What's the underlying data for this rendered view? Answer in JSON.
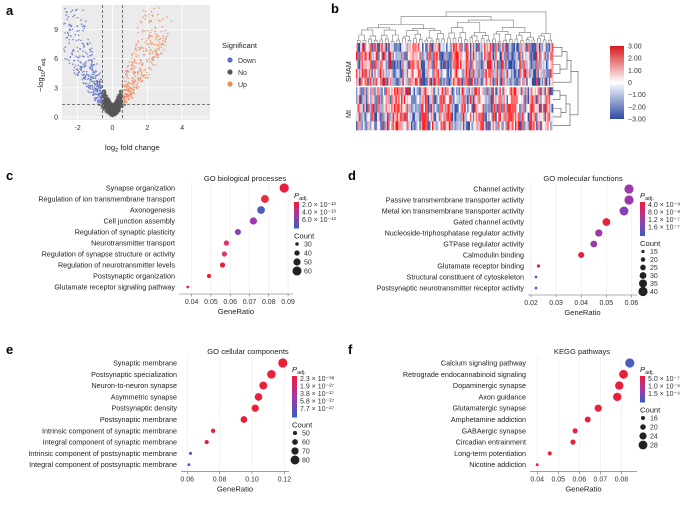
{
  "panels": {
    "a": {
      "letter": "a",
      "legend_title": "Significant",
      "legend_items": [
        {
          "label": "Down",
          "color": "#5a6dc4"
        },
        {
          "label": "No",
          "color": "#555555"
        },
        {
          "label": "Up",
          "color": "#f08a5d"
        }
      ],
      "xticks": [
        "-2",
        "0",
        "2",
        "4"
      ],
      "yticks": [
        "0",
        "3",
        "6",
        "9"
      ],
      "xlabel_main": "log",
      "xlabel_sub": "2",
      "xlabel_rest": " fold change",
      "ylabel_main": "−log",
      "ylabel_sub": "10",
      "ylabel_p": "P",
      "ylabel_padj": "adj."
    },
    "b": {
      "letter": "b",
      "row_labels": [
        "SHAM",
        "MI"
      ],
      "colorbar_labels": [
        "3.00",
        "2.00",
        "1.00",
        "0",
        "−1.00",
        "−2.00",
        "−3.00"
      ]
    }
  },
  "chart_data": [
    {
      "panel": "c",
      "type": "scatter",
      "title": "GO biological processes",
      "xlabel": "GeneRatio",
      "xticks": [
        "0.04",
        "0.05",
        "0.06",
        "0.07",
        "0.08",
        "0.09"
      ],
      "xlim": [
        0.035,
        0.091
      ],
      "categories": [
        "Synapse organization",
        "Regulation of ion transmembrane transport",
        "Axonogenesis",
        "Cell junction assembly",
        "Regulation of synaptic plasticity",
        "Neurotransmitter transport",
        "Regulation of synapse structure or activity",
        "Regulation of neurotransmitter levels",
        "Postsynaptic organization",
        "Glutamate receptor signaling pathway"
      ],
      "gene_ratio": [
        0.088,
        0.078,
        0.076,
        0.072,
        0.064,
        0.058,
        0.057,
        0.056,
        0.049,
        0.038
      ],
      "count": [
        61,
        54,
        53,
        50,
        44,
        40,
        39,
        39,
        34,
        26
      ],
      "padj_colors": [
        "#e8203a",
        "#e23040",
        "#4a5ec0",
        "#9a3aa8",
        "#8a40b0",
        "#e03468",
        "#d43a78",
        "#e8203a",
        "#e8203a",
        "#e8203a"
      ],
      "legend_color_title": "P",
      "legend_color_sub": "adj.",
      "legend_color_values": [
        "2.0 × 10⁻¹³",
        "4.0 × 10⁻¹³",
        "6.0 × 10⁻¹³"
      ],
      "legend_size_title": "Count",
      "legend_size_values": [
        "30",
        "40",
        "50",
        "60"
      ]
    },
    {
      "panel": "d",
      "type": "scatter",
      "title": "GO molecular functions",
      "xlabel": "GeneRatio",
      "xticks": [
        "0.02",
        "0.03",
        "0.04",
        "0.05",
        "0.06"
      ],
      "xlim": [
        0.02,
        0.061
      ],
      "categories": [
        "Channel activity",
        "Passive transmembrane transporter activity",
        "Metal ion transmembrane transporter activity",
        "Gated channel activity",
        "Nucleoside-triphosphatase regulator activity",
        "GTPase regulator activity",
        "Calmodulin binding",
        "Glutamate receptor binding",
        "Structural constituent of cytoskeleton",
        "Postsynaptic neurotransmitter receptor activity"
      ],
      "gene_ratio": [
        0.059,
        0.059,
        0.057,
        0.05,
        0.047,
        0.045,
        0.04,
        0.023,
        0.022,
        0.022
      ],
      "count": [
        40,
        40,
        39,
        34,
        32,
        30,
        27,
        15,
        13,
        13
      ],
      "padj_colors": [
        "#9a3aa8",
        "#9a3aa8",
        "#8a40b0",
        "#e8203a",
        "#9a3aa8",
        "#9a3aa8",
        "#e8203a",
        "#e8203a",
        "#8a40b0",
        "#4a5ec0"
      ],
      "legend_color_title": "P",
      "legend_color_sub": "adj.",
      "legend_color_values": [
        "4.0 × 10⁻⁸",
        "8.0 × 10⁻⁸",
        "1.2 × 10⁻⁷",
        "1.6 × 10⁻⁷"
      ],
      "legend_size_title": "Count",
      "legend_size_values": [
        "15",
        "20",
        "25",
        "30",
        "35",
        "40"
      ]
    },
    {
      "panel": "e",
      "type": "scatter",
      "title": "GO cellular components",
      "xlabel": "GeneRatio",
      "xticks": [
        "0.06",
        "0.08",
        "0.10",
        "0.12"
      ],
      "xlim": [
        0.058,
        0.121
      ],
      "categories": [
        "Synaptic membrane",
        "Postsynaptic specialization",
        "Neuron-to-neuron synapse",
        "Asymmetric synapse",
        "Postsynaptic density",
        "Postsynaptic membrane",
        "Intrinsic component of synaptic membrane",
        "Integral component of synaptic membrane",
        "Intrinsic component of postsynaptic membrane",
        "Integral component of postsynaptic membrane"
      ],
      "gene_ratio": [
        0.119,
        0.112,
        0.107,
        0.104,
        0.102,
        0.095,
        0.076,
        0.072,
        0.062,
        0.061
      ],
      "count": [
        82,
        78,
        74,
        72,
        70,
        66,
        52,
        50,
        44,
        42
      ],
      "padj_colors": [
        "#e8203a",
        "#e8203a",
        "#e8203a",
        "#e8203a",
        "#e8203a",
        "#e8203a",
        "#e8203a",
        "#e8203a",
        "#4a5ec0",
        "#4a5ec0"
      ],
      "legend_color_title": "P",
      "legend_color_sub": "adj.",
      "legend_color_values": [
        "2.3 × 10⁻³⁸",
        "1.9 × 10⁻²⁷",
        "3.8 × 10⁻²⁷",
        "5.8 × 10⁻²⁷",
        "7.7 × 10⁻²⁷"
      ],
      "legend_size_title": "Count",
      "legend_size_values": [
        "50",
        "60",
        "70",
        "80"
      ]
    },
    {
      "panel": "f",
      "type": "scatter",
      "title": "KEGG pathways",
      "xlabel": "GeneRatio",
      "xticks": [
        "0.04",
        "0.05",
        "0.06",
        "0.07",
        "0.08"
      ],
      "xlim": [
        0.038,
        0.086
      ],
      "categories": [
        "Calcium signaling pathway",
        "Retrograde endocannabinoid signaling",
        "Dopaminergic synapse",
        "Axon guidance",
        "Glutamatergic synapse",
        "Amphetamine addiction",
        "GABAergic synapse",
        "Circadian entrainment",
        "Long-term potentiation",
        "Nicotine addiction"
      ],
      "gene_ratio": [
        0.084,
        0.081,
        0.079,
        0.078,
        0.069,
        0.064,
        0.058,
        0.057,
        0.046,
        0.04
      ],
      "count": [
        29,
        28,
        27,
        27,
        24,
        21,
        19,
        19,
        16,
        13
      ],
      "padj_colors": [
        "#4a5ec0",
        "#e8203a",
        "#e8203a",
        "#e8203a",
        "#e8203a",
        "#e8203a",
        "#e8203a",
        "#e8203a",
        "#e8203a",
        "#e8203a"
      ],
      "legend_color_title": "P",
      "legend_color_sub": "adj.",
      "legend_color_values": [
        "5.0 × 10⁻⁷",
        "1.0 × 10⁻⁶",
        "1.5 × 10⁻⁶"
      ],
      "legend_size_title": "Count",
      "legend_size_values": [
        "16",
        "20",
        "24",
        "28"
      ]
    }
  ]
}
